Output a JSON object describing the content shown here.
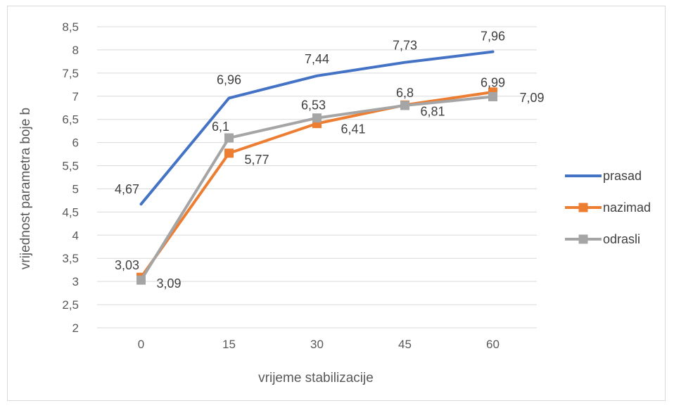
{
  "chart_data": {
    "type": "line",
    "title": "",
    "xlabel": "vrijeme stabilizacije",
    "ylabel": "vrijednost parametra boje b",
    "x": [
      0,
      15,
      30,
      45,
      60
    ],
    "x_tick_labels": [
      "0",
      "15",
      "30",
      "45",
      "60"
    ],
    "ylim": [
      2,
      8.5
    ],
    "y_ticks": [
      2,
      2.5,
      3,
      3.5,
      4,
      4.5,
      5,
      5.5,
      6,
      6.5,
      7,
      7.5,
      8,
      8.5
    ],
    "y_tick_labels": [
      "2",
      "2,5",
      "3",
      "3,5",
      "4",
      "4,5",
      "5",
      "5,5",
      "6",
      "6,5",
      "7",
      "7,5",
      "8",
      "8,5"
    ],
    "grid": true,
    "legend_position": "right",
    "series": [
      {
        "name": "prasad",
        "color": "#4472c4",
        "marker": "none",
        "values": [
          4.67,
          6.96,
          7.44,
          7.73,
          7.96
        ],
        "labels": [
          "4,67",
          "6,96",
          "7,44",
          "7,73",
          "7,96"
        ]
      },
      {
        "name": "nazimad",
        "color": "#ed7d31",
        "marker": "square",
        "values": [
          3.09,
          5.77,
          6.41,
          6.81,
          7.09
        ],
        "labels": [
          "3,09",
          "5,77",
          "6,41",
          "6,81",
          "7,09"
        ]
      },
      {
        "name": "odrasli",
        "color": "#a5a5a5",
        "marker": "square",
        "values": [
          3.03,
          6.1,
          6.53,
          6.8,
          6.99
        ],
        "labels": [
          "3,03",
          "6,1",
          "6,53",
          "6,8",
          "6,99"
        ]
      }
    ]
  }
}
